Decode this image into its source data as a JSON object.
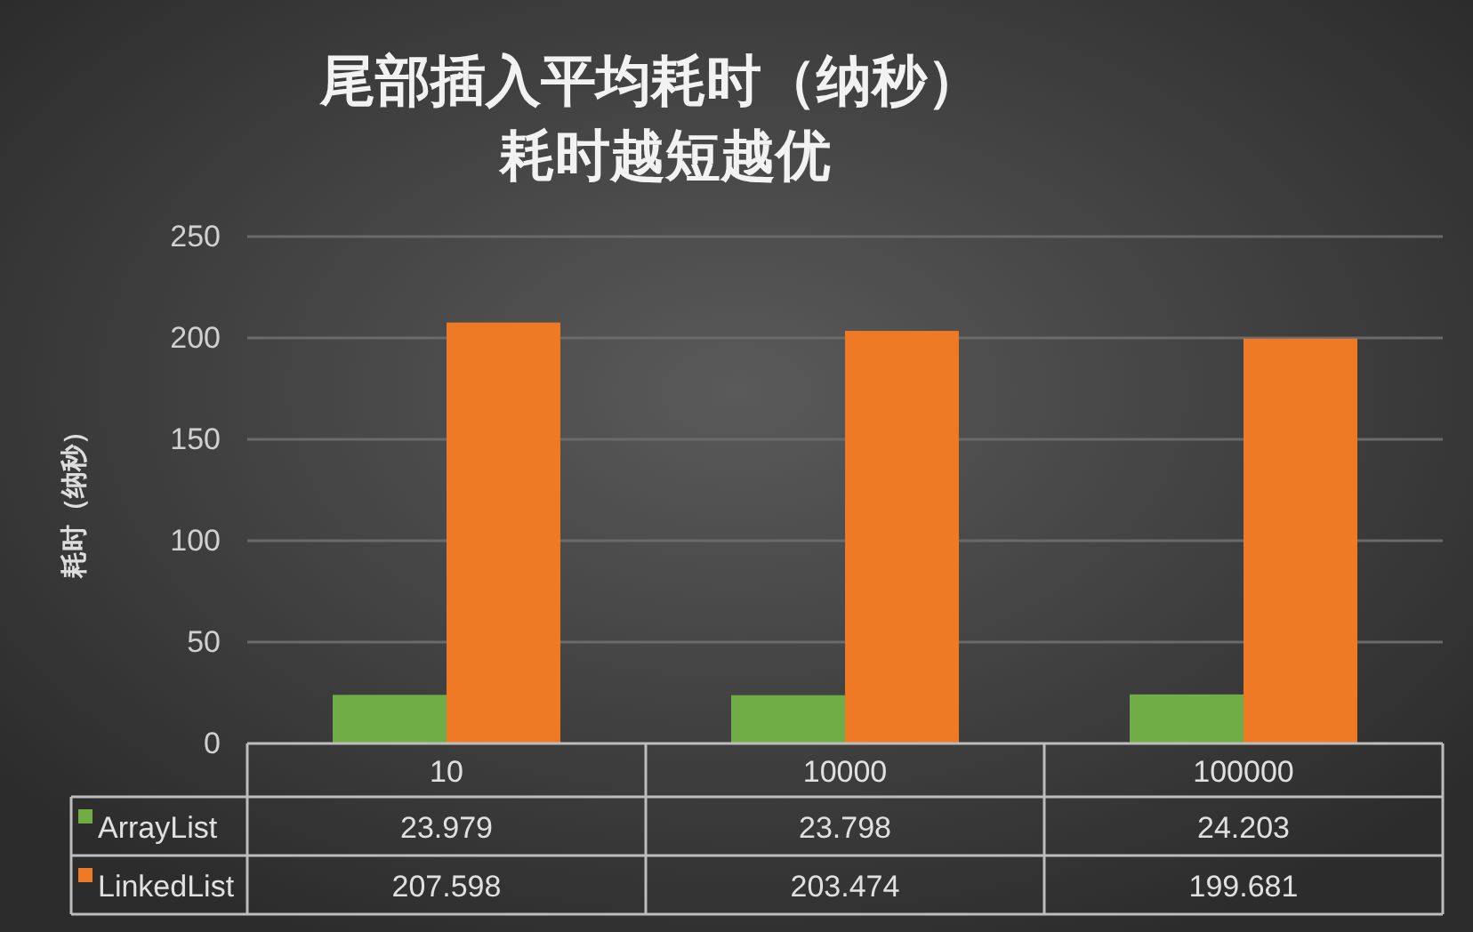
{
  "chart_data": {
    "type": "bar",
    "title": "尾部插入平均耗时（纳秒）",
    "subtitle": "耗时越短越优",
    "ylabel": "耗时（纳秒）",
    "categories": [
      "10",
      "10000",
      "100000"
    ],
    "series": [
      {
        "name": "ArrayList",
        "color": "#70ad47",
        "values": [
          23.979,
          23.798,
          24.203
        ]
      },
      {
        "name": "LinkedList",
        "color": "#ef7a26",
        "values": [
          207.598,
          203.474,
          199.681
        ]
      }
    ],
    "ylim": [
      0,
      250
    ],
    "yticks": [
      0,
      50,
      100,
      150,
      200,
      250
    ],
    "grid": "y",
    "legend": "bottom",
    "data_labels": true
  }
}
